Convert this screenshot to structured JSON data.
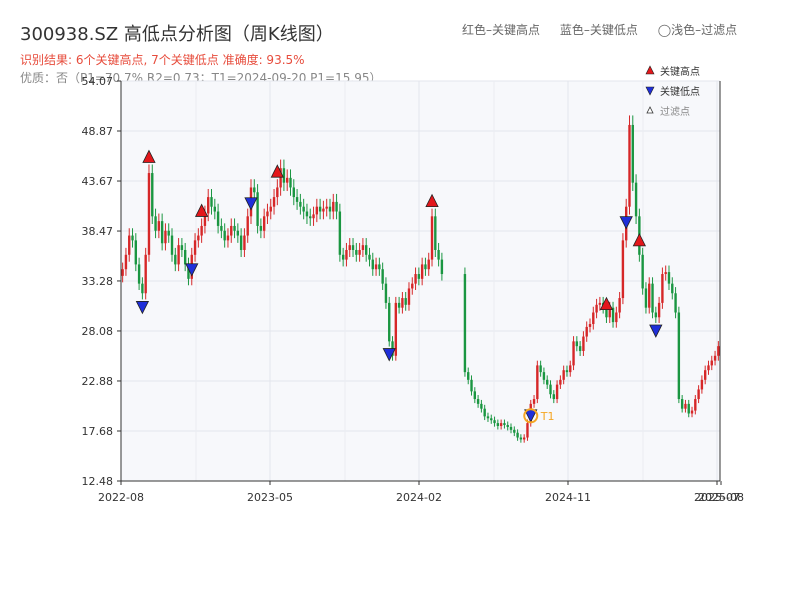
{
  "header": {
    "title": "300938.SZ 高低点分析图（周K线图）",
    "summary": "识别结果: 6个关键高点, 7个关键低点  准确度: 93.5%",
    "quality": "优质：否（P1=70.7%  R2=0.73；T1=2024-09-20 P1=15.95）"
  },
  "top_legend": {
    "red": "红色–关键高点",
    "blue": "蓝色–关键低点",
    "light": "◯浅色–过滤点"
  },
  "colors": {
    "up": "#d62728",
    "down": "#1a9641",
    "high_marker": "#e3171b",
    "low_marker": "#1f2fd9",
    "t1": "#f5a623",
    "plot_bg": "#f7f8fb"
  },
  "chart_data": {
    "type": "candlestick",
    "ylim": [
      12.48,
      54.07
    ],
    "y_ticks": [
      "54.07",
      "48.87",
      "43.67",
      "38.47",
      "33.28",
      "28.08",
      "22.88",
      "17.68",
      "12.48"
    ],
    "x_ticks": [
      "2022-08",
      "2023-05",
      "2024-02",
      "2024-11",
      "2025-07",
      "2025-08"
    ],
    "legend": {
      "high": "关键高点",
      "low": "关键低点",
      "filtered": "过滤点"
    },
    "t1_label": "T1",
    "closes": [
      34.5,
      36,
      38,
      37.5,
      35,
      33,
      32,
      36,
      44.5,
      40,
      38.5,
      39.5,
      37.2,
      38.5,
      38,
      36,
      35,
      37,
      36.5,
      35,
      33.5,
      36,
      37.5,
      38,
      39,
      40.3,
      42,
      41,
      40.5,
      39,
      38.5,
      37.5,
      38,
      39,
      38.5,
      38,
      36.5,
      38,
      40,
      43,
      42.5,
      39,
      38.5,
      40,
      40.5,
      41,
      42,
      43,
      45,
      43.5,
      44,
      43,
      42,
      41.5,
      41,
      40.5,
      40,
      39.8,
      40.2,
      41,
      40.5,
      40.8,
      41,
      40.5,
      41.5,
      40.5,
      36,
      35.5,
      36.5,
      37,
      36.5,
      36,
      36.5,
      37,
      36,
      35.5,
      34.5,
      35,
      34.5,
      33,
      31,
      27,
      25.5,
      31,
      30.5,
      31.5,
      30.8,
      32.5,
      33,
      34,
      33.5,
      35,
      34.5,
      35.5,
      40,
      36.5,
      35.5,
      34,
      null,
      null,
      null,
      null,
      null,
      null,
      23.8,
      23,
      21.8,
      21,
      20.5,
      20,
      19.2,
      19,
      18.8,
      18.5,
      18.2,
      18.5,
      18.3,
      18.1,
      17.8,
      17.5,
      17,
      16.8,
      17,
      18.5,
      20.5,
      21,
      24.5,
      23.8,
      23,
      22.5,
      21.5,
      21,
      22.5,
      23,
      24,
      23.8,
      24.5,
      27,
      26.5,
      26,
      27.5,
      28.5,
      28.8,
      30,
      30.8,
      31,
      30.5,
      29.5,
      30.5,
      29,
      30,
      31.5,
      37.5,
      41,
      49.5,
      43.5,
      40,
      36,
      32.5,
      30.5,
      33,
      30,
      29.5,
      31,
      34,
      34.2,
      33,
      32,
      30,
      21,
      20,
      20.5,
      19.5,
      19.8,
      21,
      22,
      23,
      24,
      24.5,
      25,
      25.5,
      26.5
    ]
  }
}
